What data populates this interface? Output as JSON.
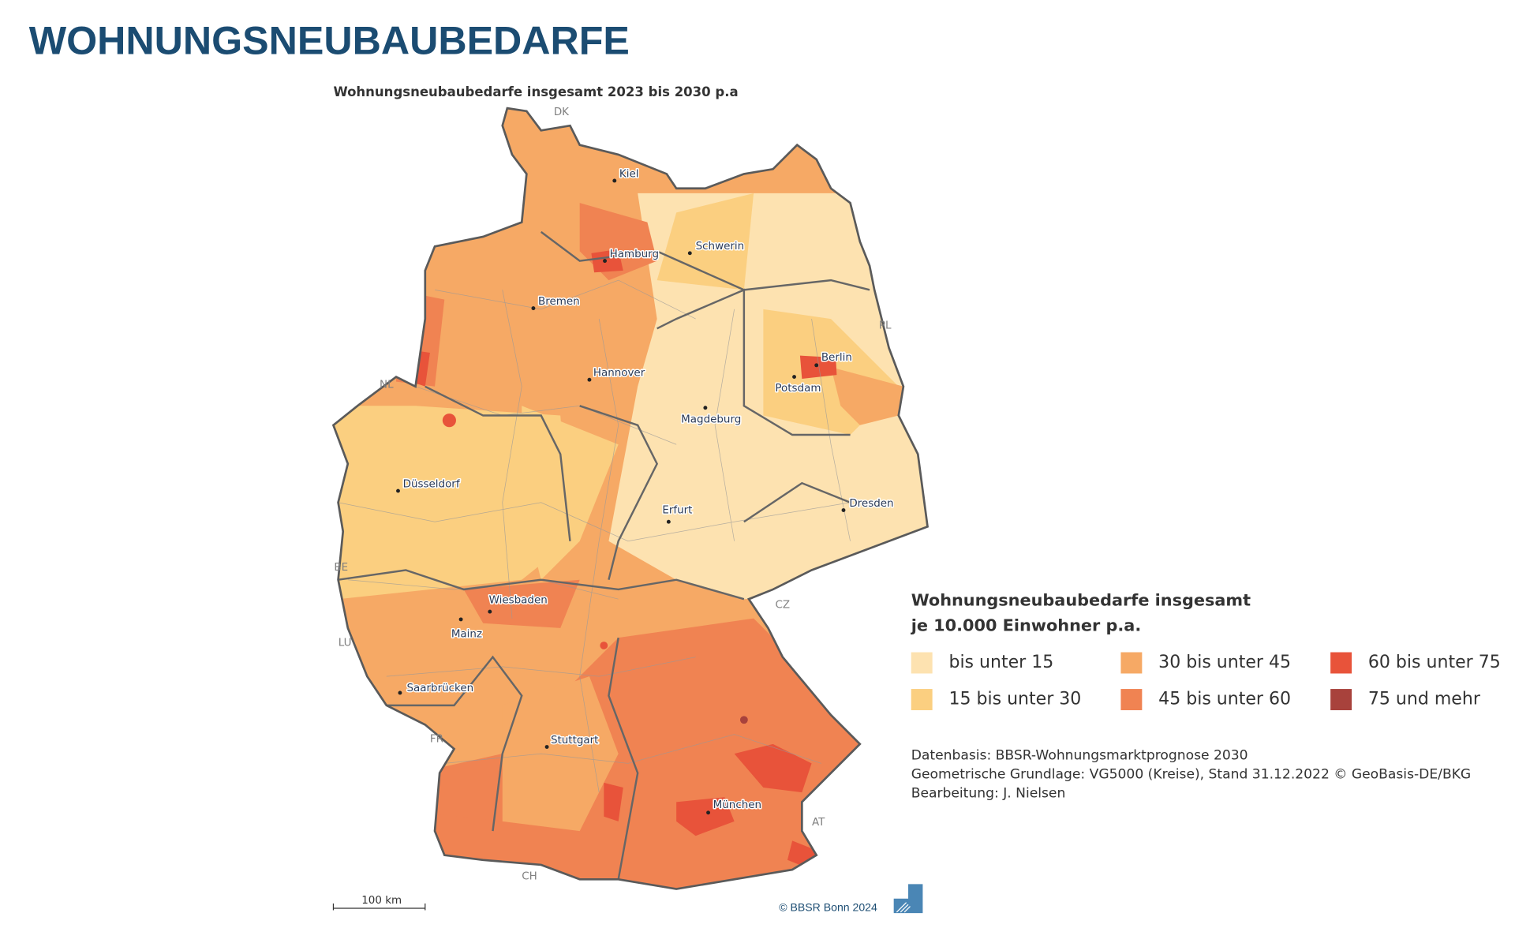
{
  "header": {
    "title": "WOHNUNGSNEUBAUBEDARFE"
  },
  "map": {
    "subtitle": "Wohnungsneubaubedarfe insgesamt 2023 bis 2030 p.a",
    "cities": [
      "Kiel",
      "Hamburg",
      "Schwerin",
      "Bremen",
      "Berlin",
      "Potsdam",
      "Hannover",
      "Magdeburg",
      "Düsseldorf",
      "Erfurt",
      "Dresden",
      "Wiesbaden",
      "Mainz",
      "Saarbrücken",
      "Stuttgart",
      "München"
    ],
    "countries": [
      "DK",
      "PL",
      "NL",
      "BE",
      "CZ",
      "LU",
      "FR",
      "AT",
      "CH"
    ],
    "scale_bar": "100 km",
    "copyright": "© BBSR Bonn 2024"
  },
  "legend": {
    "title_lines": [
      "Wohnungsneubaubedarfe insgesamt",
      "je 10.000 Einwohner p.a."
    ],
    "items": [
      {
        "label": "bis unter 15",
        "color": "#fde2b0"
      },
      {
        "label": "15 bis unter 30",
        "color": "#fbcf80"
      },
      {
        "label": "30 bis unter 45",
        "color": "#f6a965"
      },
      {
        "label": "45 bis unter 60",
        "color": "#f08352"
      },
      {
        "label": "60 bis unter 75",
        "color": "#e8533a"
      },
      {
        "label": "75 und mehr",
        "color": "#a8423c"
      }
    ]
  },
  "source": [
    "Datenbasis: BBSR-Wohnungsmarktprognose 2030",
    "Geometrische Grundlage: VG5000 (Kreise), Stand 31.12.2022 © GeoBasis-DE/BKG",
    "Bearbeitung: J. Nielsen"
  ]
}
